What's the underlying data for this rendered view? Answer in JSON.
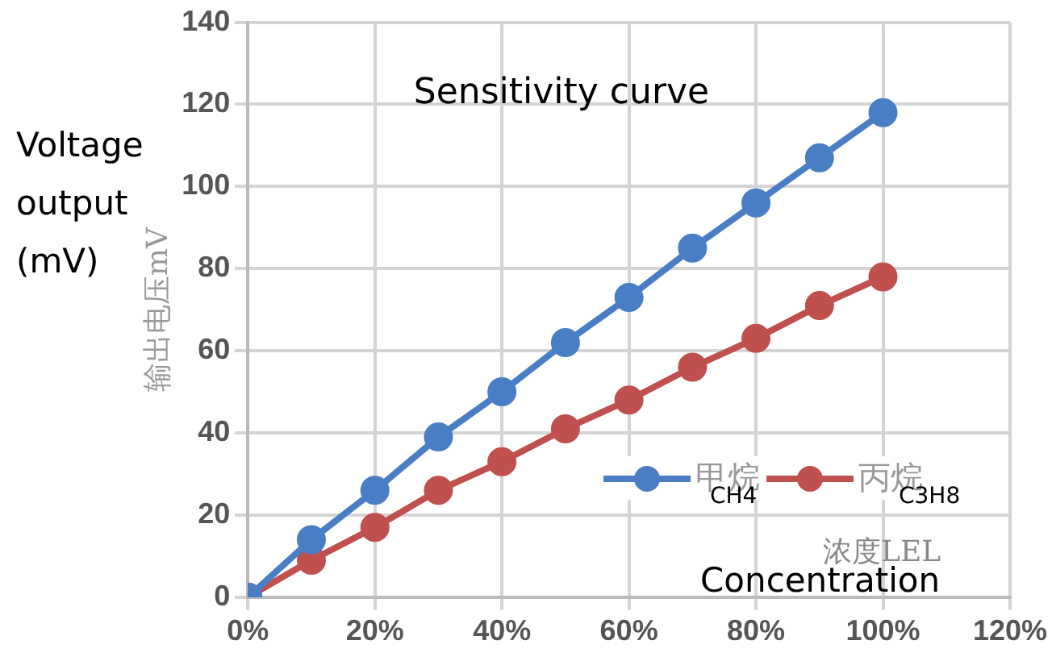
{
  "chart_data": {
    "type": "line",
    "title": "Sensitivity curve",
    "xlabel": "浓度LEL",
    "ylabel": "输出电压mV",
    "annotations": [
      "Voltage output (mV)",
      "CH4",
      "C3H8",
      "Concentration"
    ],
    "x": [
      0,
      10,
      20,
      30,
      40,
      50,
      60,
      70,
      80,
      90,
      100
    ],
    "series": [
      {
        "name": "甲烷",
        "color": "#4a7ec4",
        "values": [
          0,
          14,
          26,
          39,
          50,
          62,
          73,
          85,
          96,
          107,
          118
        ]
      },
      {
        "name": "丙烷",
        "color": "#c0504d",
        "values": [
          0,
          9,
          17,
          26,
          33,
          41,
          48,
          56,
          63,
          71,
          78
        ]
      }
    ],
    "xlim": [
      0,
      120
    ],
    "xticks": [
      {
        "value": 0,
        "label": "0%"
      },
      {
        "value": 20,
        "label": "20%"
      },
      {
        "value": 40,
        "label": "40%"
      },
      {
        "value": 60,
        "label": "60%"
      },
      {
        "value": 80,
        "label": "80%"
      },
      {
        "value": 100,
        "label": "100%"
      },
      {
        "value": 120,
        "label": "120%"
      }
    ],
    "ylim": [
      0,
      140
    ],
    "yticks": [
      0,
      20,
      40,
      60,
      80,
      100,
      120,
      140
    ],
    "grid": true,
    "legend": "bottom right",
    "marker": "circle",
    "line_style": "solid"
  }
}
